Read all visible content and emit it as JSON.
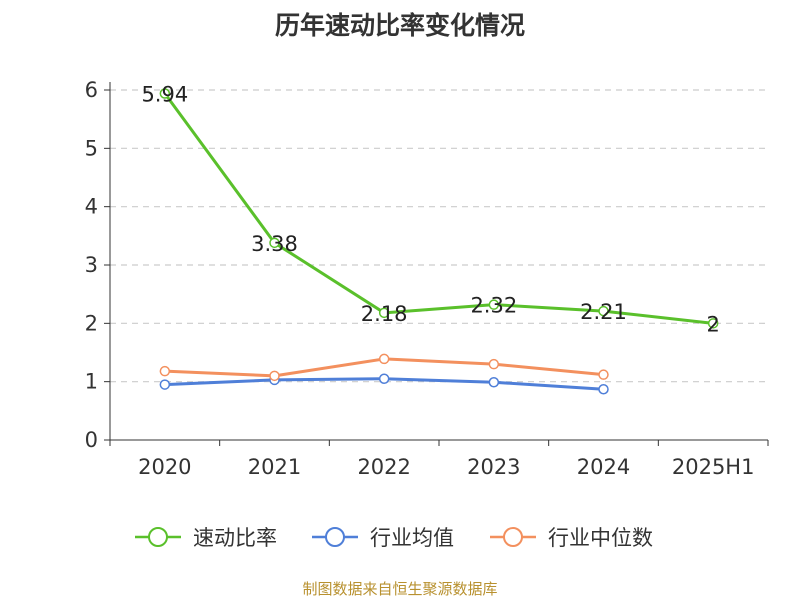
{
  "page_title": "历年速动比率变化情况",
  "source_note": "制图数据来自恒生聚源数据库",
  "colors": {
    "速动比率": "#5ac02b",
    "行业均值": "#4f7fd8",
    "行业中位数": "#f3905e",
    "grid": "#cccccc",
    "axis": "#333333",
    "source": "#b8912f"
  },
  "chart_data": {
    "type": "line",
    "title": "历年速动比率变化情况",
    "categories": [
      "2020",
      "2021",
      "2022",
      "2023",
      "2024",
      "2025H1"
    ],
    "ylim": [
      0,
      6
    ],
    "yticks": [
      "0",
      "1",
      "2",
      "3",
      "4",
      "5",
      "6"
    ],
    "grid": "horizontal dashed",
    "legend_position": "bottom",
    "series": [
      {
        "name": "速动比率",
        "values": [
          5.94,
          3.38,
          2.18,
          2.32,
          2.21,
          2
        ],
        "labels": [
          "5.94",
          "3.38",
          "2.18",
          "2.32",
          "2.21",
          "2"
        ]
      },
      {
        "name": "行业均值",
        "values": [
          0.95,
          1.03,
          1.05,
          0.99,
          0.87,
          null
        ]
      },
      {
        "name": "行业中位数",
        "values": [
          1.18,
          1.1,
          1.39,
          1.3,
          1.12,
          null
        ]
      }
    ]
  }
}
